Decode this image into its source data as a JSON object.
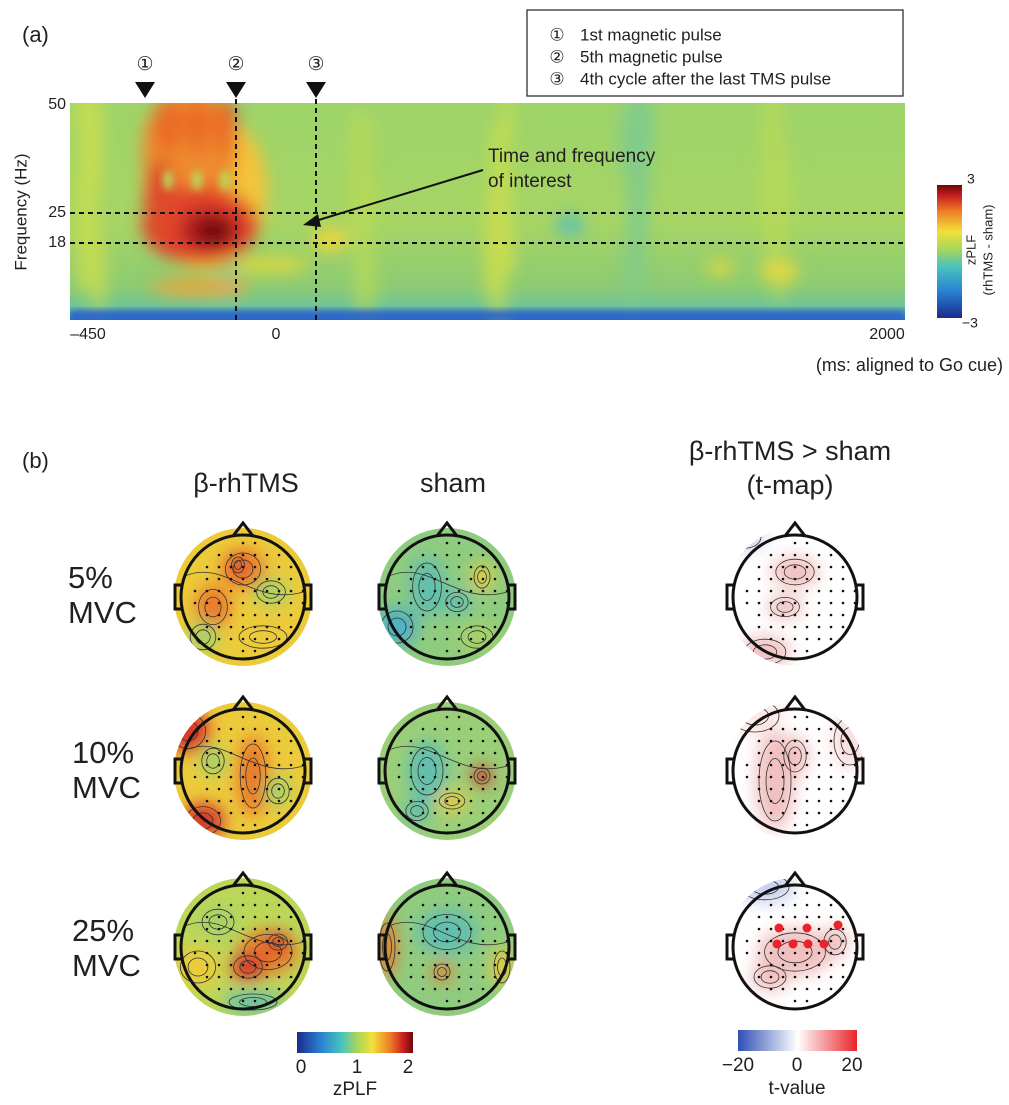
{
  "panel_a": {
    "label": "(a)",
    "markers": [
      "①",
      "②",
      "③"
    ],
    "legend": [
      {
        "marker": "①",
        "text": "1st magnetic pulse"
      },
      {
        "marker": "②",
        "text": "5th magnetic pulse"
      },
      {
        "marker": "③",
        "text": "4th cycle after the last TMS pulse"
      }
    ],
    "y_axis": {
      "label": "Frequency (Hz)",
      "ticks": [
        "50",
        "25",
        "18"
      ]
    },
    "x_axis": {
      "ticks": [
        "–450",
        "0",
        "2000"
      ],
      "label": "(ms: aligned to Go cue)"
    },
    "annotation": [
      "Time and frequency",
      "of interest"
    ],
    "colorbar": {
      "max": "3",
      "min": "−3",
      "label": "zPLF",
      "sublabel": "(rhTMS - sham)"
    }
  },
  "panel_b": {
    "label": "(b)",
    "columns": [
      "β-rhTMS",
      "sham",
      "β-rhTMS > sham",
      "(t-map)"
    ],
    "rows": [
      [
        "5%",
        "MVC"
      ],
      [
        "10%",
        "MVC"
      ],
      [
        "25%",
        "MVC"
      ]
    ],
    "colorbar_zplf": {
      "ticks": [
        "0",
        "1",
        "2"
      ],
      "label": "zPLF"
    },
    "colorbar_t": {
      "ticks": [
        "−20",
        "0",
        "20"
      ],
      "label": "t-value"
    }
  }
}
